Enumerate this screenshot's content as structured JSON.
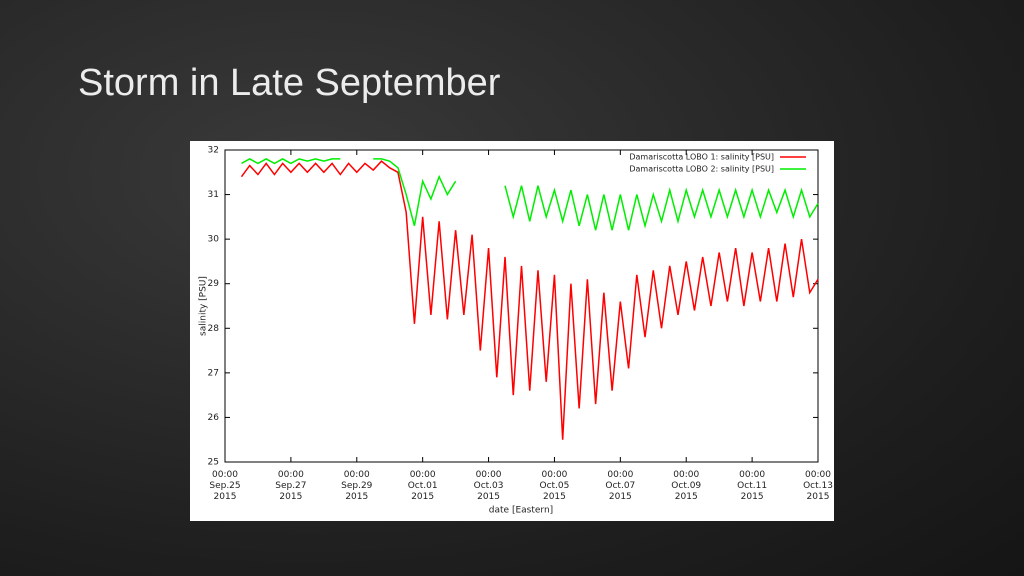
{
  "slide": {
    "title": "Storm in Late September"
  },
  "chart_data": {
    "type": "line",
    "x_label": "date [Eastern]",
    "y_label": "salinity [PSU]",
    "x": [
      "2015-09-25 12:00",
      "2015-09-25 18:00",
      "2015-09-26 00:00",
      "2015-09-26 06:00",
      "2015-09-26 12:00",
      "2015-09-26 18:00",
      "2015-09-27 00:00",
      "2015-09-27 06:00",
      "2015-09-27 12:00",
      "2015-09-27 18:00",
      "2015-09-28 00:00",
      "2015-09-28 06:00",
      "2015-09-28 12:00",
      "2015-09-28 18:00",
      "2015-09-29 00:00",
      "2015-09-29 06:00",
      "2015-09-29 12:00",
      "2015-09-29 18:00",
      "2015-09-30 00:00",
      "2015-09-30 06:00",
      "2015-09-30 12:00",
      "2015-09-30 18:00",
      "2015-10-01 00:00",
      "2015-10-01 06:00",
      "2015-10-01 12:00",
      "2015-10-01 18:00",
      "2015-10-02 00:00",
      "2015-10-02 06:00",
      "2015-10-02 12:00",
      "2015-10-02 18:00",
      "2015-10-03 00:00",
      "2015-10-03 06:00",
      "2015-10-03 12:00",
      "2015-10-03 18:00",
      "2015-10-04 00:00",
      "2015-10-04 06:00",
      "2015-10-04 12:00",
      "2015-10-04 18:00",
      "2015-10-05 00:00",
      "2015-10-05 06:00",
      "2015-10-05 12:00",
      "2015-10-05 18:00",
      "2015-10-06 00:00",
      "2015-10-06 06:00",
      "2015-10-06 12:00",
      "2015-10-06 18:00",
      "2015-10-07 00:00",
      "2015-10-07 06:00",
      "2015-10-07 12:00",
      "2015-10-07 18:00",
      "2015-10-08 00:00",
      "2015-10-08 06:00",
      "2015-10-08 12:00",
      "2015-10-08 18:00",
      "2015-10-09 00:00",
      "2015-10-09 06:00",
      "2015-10-09 12:00",
      "2015-10-09 18:00",
      "2015-10-10 00:00",
      "2015-10-10 06:00",
      "2015-10-10 12:00",
      "2015-10-10 18:00",
      "2015-10-11 00:00",
      "2015-10-11 06:00",
      "2015-10-11 12:00",
      "2015-10-11 18:00",
      "2015-10-12 00:00",
      "2015-10-12 06:00",
      "2015-10-12 12:00",
      "2015-10-12 18:00",
      "2015-10-13 00:00"
    ],
    "series": [
      {
        "name": "Damariscotta LOBO 1: salinity [PSU]",
        "color": "#ff0000",
        "values": [
          31.4,
          31.65,
          31.45,
          31.7,
          31.45,
          31.7,
          31.5,
          31.7,
          31.5,
          31.7,
          31.5,
          31.7,
          31.45,
          31.7,
          31.5,
          31.7,
          31.55,
          31.75,
          31.6,
          31.5,
          30.6,
          28.1,
          30.5,
          28.3,
          30.4,
          28.2,
          30.2,
          28.3,
          30.1,
          27.5,
          29.8,
          26.9,
          29.6,
          26.5,
          29.4,
          26.6,
          29.3,
          26.8,
          29.2,
          25.5,
          29.0,
          26.2,
          29.1,
          26.3,
          28.8,
          26.6,
          28.6,
          27.1,
          29.2,
          27.8,
          29.3,
          28.0,
          29.4,
          28.3,
          29.5,
          28.4,
          29.6,
          28.5,
          29.7,
          28.6,
          29.8,
          28.5,
          29.7,
          28.6,
          29.8,
          28.6,
          29.9,
          28.7,
          30.0,
          28.8,
          29.1
        ]
      },
      {
        "name": "Damariscotta LOBO 2: salinity [PSU]",
        "color": "#00ee00",
        "values": [
          31.7,
          31.8,
          31.7,
          31.8,
          31.7,
          31.8,
          31.7,
          31.8,
          31.75,
          31.8,
          31.75,
          31.8,
          31.8,
          null,
          null,
          null,
          31.8,
          31.8,
          31.75,
          31.6,
          31.0,
          30.3,
          31.3,
          30.9,
          31.4,
          31.0,
          31.3,
          null,
          null,
          null,
          null,
          null,
          31.2,
          30.5,
          31.2,
          30.4,
          31.2,
          30.5,
          31.1,
          30.4,
          31.1,
          30.3,
          31.0,
          30.2,
          31.0,
          30.2,
          31.0,
          30.2,
          31.0,
          30.3,
          31.0,
          30.4,
          31.1,
          30.4,
          31.1,
          30.5,
          31.1,
          30.5,
          31.1,
          30.5,
          31.1,
          30.5,
          31.1,
          30.5,
          31.1,
          30.6,
          31.1,
          30.5,
          31.1,
          30.5,
          30.8
        ]
      }
    ],
    "xlim": [
      "2015-09-25 00:00",
      "2015-10-13 00:00"
    ],
    "xticks": [
      {
        "value": "2015-09-25 00:00",
        "label": "00:00\nSep.25\n2015"
      },
      {
        "value": "2015-09-27 00:00",
        "label": "00:00\nSep.27\n2015"
      },
      {
        "value": "2015-09-29 00:00",
        "label": "00:00\nSep.29\n2015"
      },
      {
        "value": "2015-10-01 00:00",
        "label": "00:00\nOct.01\n2015"
      },
      {
        "value": "2015-10-03 00:00",
        "label": "00:00\nOct.03\n2015"
      },
      {
        "value": "2015-10-05 00:00",
        "label": "00:00\nOct.05\n2015"
      },
      {
        "value": "2015-10-07 00:00",
        "label": "00:00\nOct.07\n2015"
      },
      {
        "value": "2015-10-09 00:00",
        "label": "00:00\nOct.09\n2015"
      },
      {
        "value": "2015-10-11 00:00",
        "label": "00:00\nOct.11\n2015"
      },
      {
        "value": "2015-10-13 00:00",
        "label": "00:00\nOct.13\n2015"
      }
    ],
    "ylim": [
      25,
      32
    ],
    "yticks": [
      25,
      26,
      27,
      28,
      29,
      30,
      31,
      32
    ],
    "grid": false,
    "legend": "top-right"
  }
}
